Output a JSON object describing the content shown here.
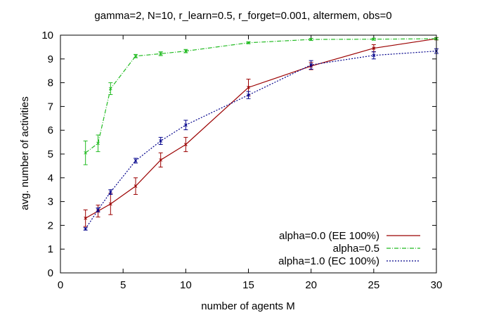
{
  "chart_data": {
    "type": "line",
    "title": "gamma=2, N=10, r_learn=0.5, r_forget=0.001, altermem, obs=0",
    "xlabel": "number of agents M",
    "ylabel": "avg. number of activities",
    "xlim": [
      0,
      30
    ],
    "ylim": [
      0,
      10
    ],
    "xticks": [
      "0",
      "5",
      "10",
      "15",
      "20",
      "25",
      "30"
    ],
    "yticks": [
      "0",
      "1",
      "2",
      "3",
      "4",
      "5",
      "6",
      "7",
      "8",
      "9",
      "10"
    ],
    "grid": false,
    "legend_position": "bottom-right",
    "series": [
      {
        "name": "alpha=0.0 (EE 100%)",
        "color": "#9b0000",
        "dash": "solid",
        "x": [
          2,
          3,
          4,
          6,
          8,
          10,
          15,
          20,
          25,
          30
        ],
        "y": [
          2.3,
          2.6,
          2.9,
          3.65,
          4.75,
          5.4,
          7.8,
          8.7,
          9.45,
          9.85
        ],
        "err": [
          0.35,
          0.25,
          0.45,
          0.35,
          0.3,
          0.3,
          0.35,
          0.15,
          0.15,
          0.05
        ]
      },
      {
        "name": "alpha=0.5",
        "color": "#22bb22",
        "dash": "dashdot",
        "x": [
          2,
          3,
          4,
          6,
          8,
          10,
          15,
          20,
          25,
          30
        ],
        "y": [
          5.05,
          5.45,
          7.75,
          9.12,
          9.22,
          9.33,
          9.68,
          9.82,
          9.83,
          9.85
        ],
        "err": [
          0.5,
          0.35,
          0.25,
          0.07,
          0.08,
          0.07,
          0.04,
          0.04,
          0.04,
          0.04
        ]
      },
      {
        "name": "alpha=1.0 (EC 100%)",
        "color": "#00008b",
        "dash": "dotted",
        "x": [
          2,
          3,
          4,
          6,
          8,
          10,
          15,
          20,
          25,
          30
        ],
        "y": [
          1.85,
          2.65,
          3.4,
          4.72,
          5.55,
          6.22,
          7.48,
          8.75,
          9.15,
          9.33
        ],
        "err": [
          0.05,
          0.08,
          0.1,
          0.1,
          0.15,
          0.2,
          0.15,
          0.18,
          0.15,
          0.1
        ]
      }
    ]
  }
}
